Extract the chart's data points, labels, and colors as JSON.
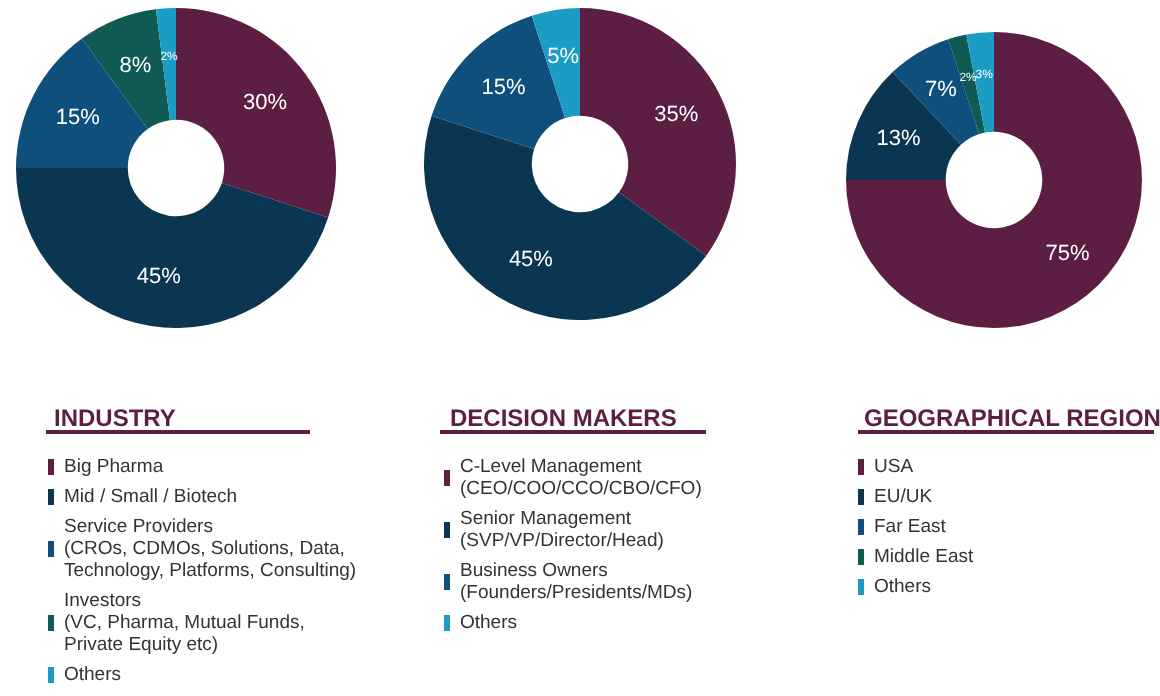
{
  "chart_data": [
    {
      "type": "donut",
      "title": "INDUSTRY",
      "categories": [
        "Big Pharma",
        "Mid / Small / Biotech",
        "Service Providers\n(CROs, CDMOs, Solutions, Data,\nTechnology, Platforms, Consulting)",
        "Investors\n(VC, Pharma, Mutual Funds,\nPrivate Equity etc)",
        "Others"
      ],
      "values": [
        30,
        45,
        15,
        8,
        2
      ],
      "value_labels": [
        "30%",
        "45%",
        "15%",
        "8%",
        "2%"
      ],
      "colors": [
        "#5c1e42",
        "#0b3651",
        "#0e4f7b",
        "#0f5a52",
        "#1a9cc4"
      ],
      "legend": "bottom"
    },
    {
      "type": "donut",
      "title": "DECISION MAKERS",
      "categories": [
        "C-Level Management\n(CEO/COO/CCO/CBO/CFO)",
        "Senior Management\n(SVP/VP/Director/Head)",
        "Business Owners\n(Founders/Presidents/MDs)",
        "Others"
      ],
      "values": [
        35,
        45,
        15,
        5
      ],
      "value_labels": [
        "35%",
        "45%",
        "15%",
        "5%"
      ],
      "colors": [
        "#5c1e42",
        "#0b3651",
        "#0e4f7b",
        "#1a9cc4"
      ],
      "legend": "bottom"
    },
    {
      "type": "donut",
      "title": "GEOGRAPHICAL REGION",
      "categories": [
        "USA",
        "EU/UK",
        "Far East",
        "Middle East",
        "Others"
      ],
      "values": [
        75,
        13,
        7,
        2,
        3
      ],
      "value_labels": [
        "75%",
        "13%",
        "7%",
        "2%",
        "3%"
      ],
      "colors": [
        "#5c1e42",
        "#0b3651",
        "#0e4f7b",
        "#0f5a52",
        "#1a9cc4"
      ],
      "legend": "bottom"
    }
  ]
}
